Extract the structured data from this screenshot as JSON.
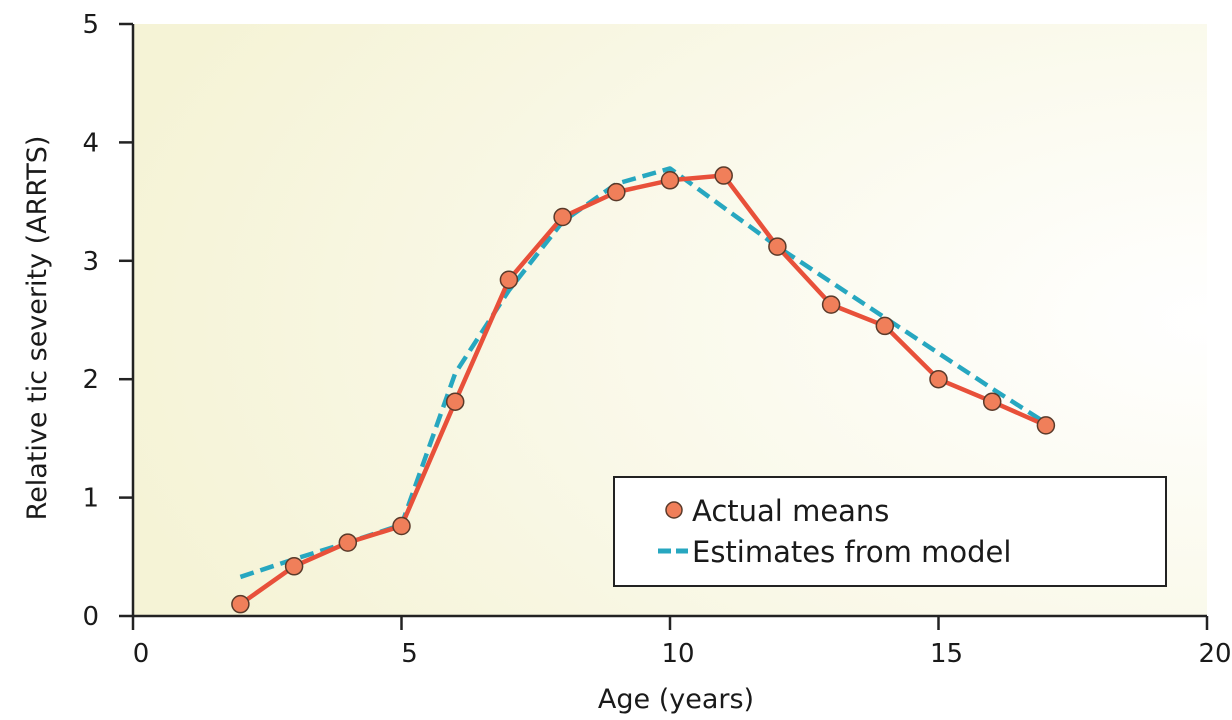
{
  "chart_data": {
    "type": "line",
    "xlabel": "Age (years)",
    "ylabel": "Relative tic severity (ARRTS)",
    "xlim": [
      0,
      20
    ],
    "ylim": [
      0,
      5
    ],
    "x_ticks": [
      0,
      5,
      10,
      15,
      20
    ],
    "y_ticks": [
      0,
      1,
      2,
      3,
      4,
      5
    ],
    "grid": false,
    "legend_position": "bottom-right",
    "series": [
      {
        "name": "Actual means",
        "style": "line-with-markers",
        "color": "#e8503a",
        "marker_fill": "#f07f5a",
        "x": [
          2,
          3,
          4,
          5,
          6,
          7,
          8,
          9,
          10,
          11,
          12,
          13,
          14,
          15,
          16,
          17
        ],
        "y": [
          0.1,
          0.42,
          0.62,
          0.76,
          1.81,
          2.84,
          3.37,
          3.58,
          3.68,
          3.72,
          3.12,
          2.63,
          2.45,
          2.0,
          1.81,
          1.61
        ]
      },
      {
        "name": "Estimates from model",
        "style": "dashed",
        "color": "#27a7c0",
        "x": [
          2,
          3,
          4,
          5,
          6,
          7,
          8,
          9,
          10,
          11,
          12,
          13,
          14,
          15,
          16,
          17
        ],
        "y": [
          0.33,
          0.48,
          0.62,
          0.77,
          2.05,
          2.75,
          3.33,
          3.65,
          3.78,
          3.45,
          3.12,
          2.82,
          2.52,
          2.22,
          1.92,
          1.63
        ]
      }
    ],
    "background_gradient": [
      "#f5f3d6",
      "#ffffff"
    ]
  }
}
